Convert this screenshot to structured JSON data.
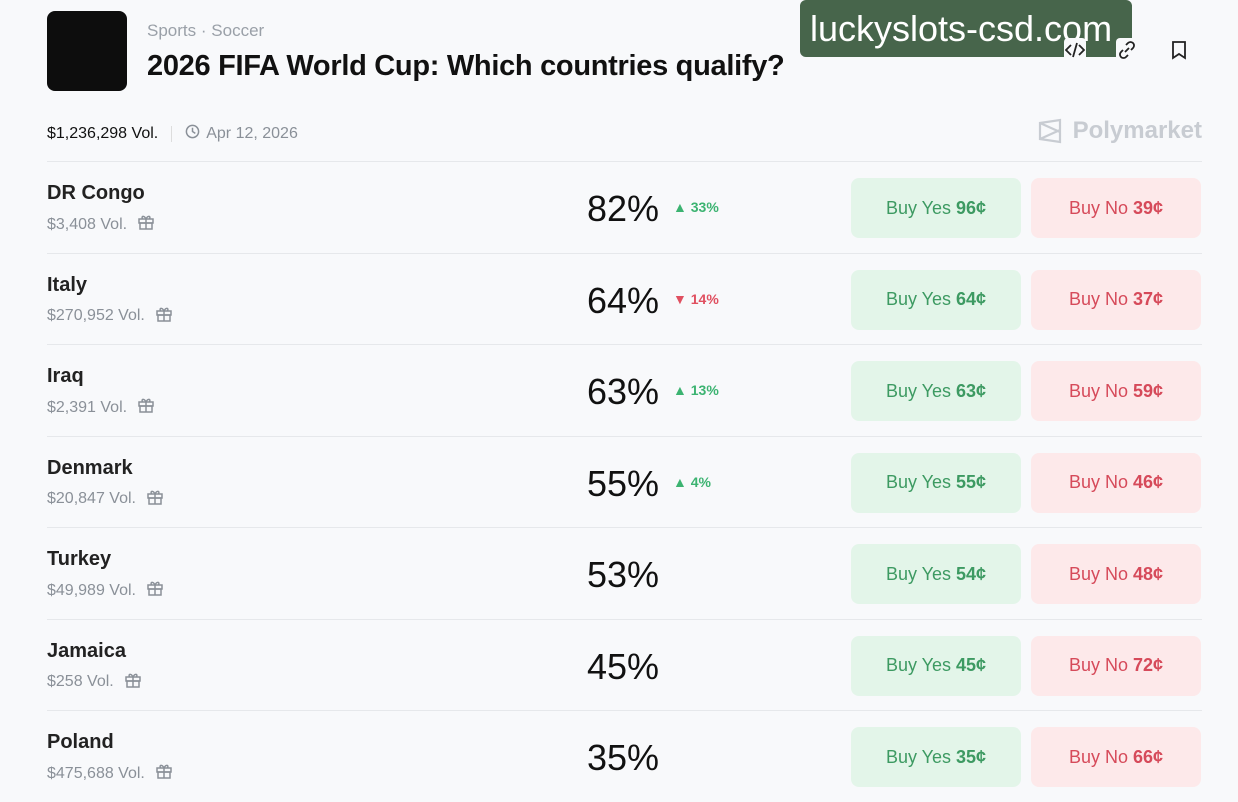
{
  "header": {
    "category": "Sports",
    "subcategory": "Soccer",
    "title": "2026 FIFA World Cup: Which countries qualify?",
    "volume": "$1,236,298 Vol.",
    "date": "Apr 12, 2026",
    "brand": "Polymarket"
  },
  "watermark": "luckyslots-csd.com",
  "outcomes": [
    {
      "name": "DR Congo",
      "vol": "$3,408 Vol.",
      "pct": "82%",
      "change": "33%",
      "dir": "up",
      "yes": "96¢",
      "no": "39¢"
    },
    {
      "name": "Italy",
      "vol": "$270,952 Vol.",
      "pct": "64%",
      "change": "14%",
      "dir": "down",
      "yes": "64¢",
      "no": "37¢"
    },
    {
      "name": "Iraq",
      "vol": "$2,391 Vol.",
      "pct": "63%",
      "change": "13%",
      "dir": "up",
      "yes": "63¢",
      "no": "59¢"
    },
    {
      "name": "Denmark",
      "vol": "$20,847 Vol.",
      "pct": "55%",
      "change": "4%",
      "dir": "up",
      "yes": "55¢",
      "no": "46¢"
    },
    {
      "name": "Turkey",
      "vol": "$49,989 Vol.",
      "pct": "53%",
      "change": "",
      "dir": "",
      "yes": "54¢",
      "no": "48¢"
    },
    {
      "name": "Jamaica",
      "vol": "$258 Vol.",
      "pct": "45%",
      "change": "",
      "dir": "",
      "yes": "45¢",
      "no": "72¢"
    },
    {
      "name": "Poland",
      "vol": "$475,688 Vol.",
      "pct": "35%",
      "change": "",
      "dir": "",
      "yes": "35¢",
      "no": "66¢"
    }
  ],
  "labels": {
    "buy_yes": "Buy Yes",
    "buy_no": "Buy No",
    "dot": "·"
  },
  "colors": {
    "yes": "#3d9a62",
    "no": "#d64a5a",
    "up": "#3cb371",
    "down": "#e05060"
  }
}
